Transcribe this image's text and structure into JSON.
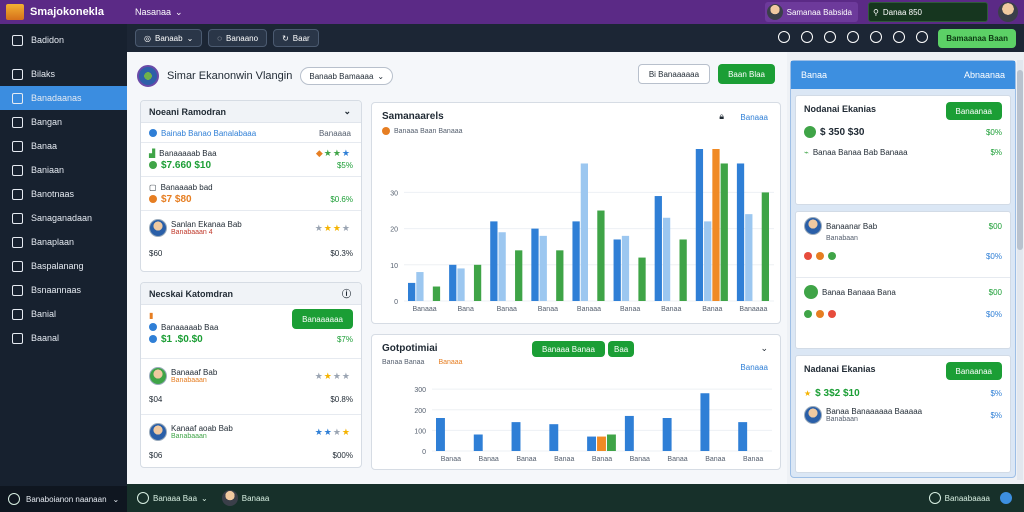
{
  "app": {
    "name": "Smajokonekla",
    "nav_label": "Nasanaa"
  },
  "top": {
    "user_name": "Samanaa Babsida",
    "search_value": "Danaa 850"
  },
  "sidebar": {
    "items": [
      {
        "label": "Badidon",
        "icon": "grid-icon"
      },
      {
        "label": "Bilaks",
        "icon": "coin-icon"
      },
      {
        "label": "Banadaanas",
        "icon": "dashboard-icon",
        "active": true
      },
      {
        "label": "Bangan",
        "icon": "pen-icon"
      },
      {
        "label": "Banaa",
        "icon": "table-icon"
      },
      {
        "label": "Baniaan",
        "icon": "list-icon"
      },
      {
        "label": "Banotnaas",
        "icon": "window-icon"
      },
      {
        "label": "Sanaganadaan",
        "icon": "folder-icon"
      },
      {
        "label": "Banaplaan",
        "icon": "chat-icon"
      },
      {
        "label": "Baspalanang",
        "icon": "home-icon"
      },
      {
        "label": "Bsnaannaas",
        "icon": "inbox-icon"
      },
      {
        "label": "Banial",
        "icon": "wrench-icon"
      },
      {
        "label": "Baanal",
        "icon": "monitor-icon"
      }
    ],
    "footer": "Banaboianon naanaan"
  },
  "toolbar": {
    "filter1": "Banaab",
    "filter2": "Banaano",
    "filter3": "Baar",
    "action": "Bamaanaa Baan"
  },
  "subheader": {
    "title": "Simar Ekanonwin Vlangin",
    "select": "Banaab Bamaaaa",
    "btn_outline": "Bi Banaaaaaa",
    "btn_green": "Baan Blaa"
  },
  "card1": {
    "title": "Noeani Ramodran",
    "rows": [
      {
        "label": "Bainab Banao Banalabaaa",
        "meta": "Banaaaa"
      },
      {
        "label": "Banaaaaab Baa",
        "price": "$7.660 $10",
        "pct": "$5%"
      },
      {
        "label": "Banaaaab bad",
        "price": "$7 $80",
        "pct": "$0.6%"
      },
      {
        "label": "Sanlan Ekanaa Bab",
        "sub": "Banabaaan 4",
        "val": "$60",
        "pct": "$0.3%"
      }
    ]
  },
  "card2": {
    "title": "Necskai Katomdran",
    "button": "Banaaaaaa",
    "rows": [
      {
        "label": "Banaaaaab Baa",
        "price": "$1 .$0.$0",
        "pct": "$7%"
      },
      {
        "label": "Banaaaf Bab",
        "sub": "Banabaaan",
        "val": "$04",
        "pct": "$0.8%"
      },
      {
        "label": "Kanaaf aoab Bab",
        "sub": "Banabaaan",
        "val": "$06",
        "pct": "$00%"
      }
    ]
  },
  "chart1": {
    "title": "Samanaarels",
    "legend": "Banaaa Baan Banaaa",
    "link": "Banaaa",
    "chart_data": {
      "type": "bar",
      "categories": [
        "Banaaa",
        "Bana",
        "Banaa",
        "Banaa",
        "Banaaa",
        "Banaa",
        "Banaa",
        "Banaa",
        "Banaaaa"
      ],
      "series": [
        {
          "values": [
            5,
            10,
            22,
            20,
            22,
            17,
            29,
            42,
            38
          ],
          "color": "#2f7fd6"
        },
        {
          "values": [
            8,
            9,
            19,
            18,
            38,
            18,
            23,
            22,
            24
          ],
          "color": "#9cc7f0"
        },
        {
          "values": [
            0,
            0,
            0,
            0,
            0,
            0,
            0,
            42,
            0
          ],
          "color": "#f08a24"
        },
        {
          "values": [
            4,
            10,
            14,
            14,
            25,
            12,
            17,
            38,
            30
          ],
          "color": "#3fa447"
        }
      ],
      "y_ticks": [
        "0",
        "10",
        "20",
        "30"
      ],
      "ylim": [
        0,
        42
      ]
    }
  },
  "chart2": {
    "title": "Gotpotimiai",
    "btn": "Banaaa Banaa",
    "btn2": "Baa",
    "legend": "Banaa Banaa",
    "legend2": "Banaaa",
    "link": "Banaaa",
    "chart_data": {
      "type": "bar",
      "categories": [
        "Banaa",
        "Banaa",
        "Banaa",
        "Banaa",
        "Banaa",
        "Banaa",
        "Banaa",
        "Banaa",
        "Banaa"
      ],
      "series": [
        {
          "values": [
            160,
            80,
            140,
            130,
            70,
            170,
            160,
            280,
            140
          ],
          "color": "#2f7fd6"
        },
        {
          "values": [
            0,
            0,
            0,
            0,
            70,
            0,
            0,
            0,
            0
          ],
          "color": "#f08a24"
        },
        {
          "values": [
            0,
            0,
            0,
            0,
            80,
            0,
            0,
            0,
            0
          ],
          "color": "#3fa447"
        }
      ],
      "y_ticks": [
        "0",
        "100",
        "200",
        "300"
      ],
      "ylim": [
        0,
        320
      ]
    }
  },
  "right": {
    "header_left": "Banaa",
    "header_right": "Abnaanaa",
    "card_a": {
      "title": "Nodanai Ekanias",
      "btn": "Banaanaa",
      "rows": [
        {
          "label": "$ 350 $30",
          "pct": "$0%"
        },
        {
          "label": "Banaa Banaa Bab Banaaa",
          "pct": "$%"
        }
      ]
    },
    "card_b": [
      {
        "label": "Banaanar Bab",
        "sub": "Banabaan",
        "val": "$00",
        "pct": "$0%"
      },
      {
        "label": "Banaa Banaaa Bana",
        "val": "$00",
        "pct": "$0%"
      }
    ],
    "card_c": {
      "title": "Nadanai Ekanias",
      "btn": "Banaanaa",
      "rows": [
        {
          "label": "$ 3$2 $10",
          "pct": "$%"
        },
        {
          "label": "Banaa Banaaaaaa Baaaaa",
          "sub": "Banabaan",
          "pct": "$%"
        }
      ]
    }
  },
  "bottombar": {
    "left": "Banaaa Baa",
    "mid": "Banaaa",
    "right": "Banaabaaaa"
  }
}
